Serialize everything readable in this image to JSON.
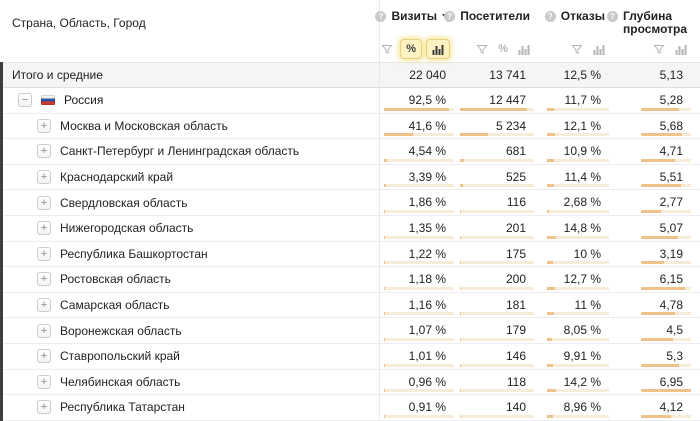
{
  "header": {
    "dimension_label": "Страна, Область, Город",
    "metrics": [
      {
        "label": "Визиты",
        "sortable": true,
        "controls": [
          "filter",
          "percent",
          "bars"
        ],
        "percent_active": true,
        "bars_active": true
      },
      {
        "label": "Посетители",
        "sortable": false,
        "controls": [
          "filter",
          "percent",
          "bars"
        ],
        "percent_active": false,
        "bars_active": false
      },
      {
        "label": "Отказы",
        "sortable": false,
        "controls": [
          "filter",
          "bars"
        ],
        "percent_active": false,
        "bars_active": false
      },
      {
        "label": "Глубина просмотра",
        "sortable": false,
        "controls": [
          "filter",
          "bars"
        ],
        "percent_active": false,
        "bars_active": false
      }
    ]
  },
  "totals_row": {
    "label": "Итого и средние",
    "values": [
      "22 040",
      "13 741",
      "12,5 %",
      "5,13"
    ]
  },
  "rows": [
    {
      "name": "Россия",
      "expander": "−",
      "flag": "russia",
      "indent": 1,
      "values": [
        "92,5 %",
        "12 447",
        "11,7 %",
        "5,28"
      ],
      "bar_fractions": [
        0.925,
        0.906,
        0.117,
        0.76
      ]
    },
    {
      "name": "Москва и Московская область",
      "expander": "+",
      "flag": null,
      "indent": 2,
      "values": [
        "41,6 %",
        "5 234",
        "12,1 %",
        "5,68"
      ],
      "bar_fractions": [
        0.416,
        0.381,
        0.121,
        0.817
      ]
    },
    {
      "name": "Санкт-Петербург и Ленинградская область",
      "expander": "+",
      "flag": null,
      "indent": 2,
      "values": [
        "4,54 %",
        "681",
        "10,9 %",
        "4,71"
      ],
      "bar_fractions": [
        0.045,
        0.05,
        0.109,
        0.678
      ]
    },
    {
      "name": "Краснодарский край",
      "expander": "+",
      "flag": null,
      "indent": 2,
      "values": [
        "3,39 %",
        "525",
        "11,4 %",
        "5,51"
      ],
      "bar_fractions": [
        0.034,
        0.038,
        0.114,
        0.793
      ]
    },
    {
      "name": "Свердловская область",
      "expander": "+",
      "flag": null,
      "indent": 2,
      "values": [
        "1,86 %",
        "116",
        "2,68 %",
        "2,77"
      ],
      "bar_fractions": [
        0.019,
        0.008,
        0.027,
        0.399
      ]
    },
    {
      "name": "Нижегородская область",
      "expander": "+",
      "flag": null,
      "indent": 2,
      "values": [
        "1,35 %",
        "201",
        "14,8 %",
        "5,07"
      ],
      "bar_fractions": [
        0.014,
        0.015,
        0.148,
        0.73
      ]
    },
    {
      "name": "Республика Башкортостан",
      "expander": "+",
      "flag": null,
      "indent": 2,
      "values": [
        "1,22 %",
        "175",
        "10 %",
        "3,19"
      ],
      "bar_fractions": [
        0.012,
        0.013,
        0.1,
        0.459
      ]
    },
    {
      "name": "Ростовская область",
      "expander": "+",
      "flag": null,
      "indent": 2,
      "values": [
        "1,18 %",
        "200",
        "12,7 %",
        "6,15"
      ],
      "bar_fractions": [
        0.012,
        0.015,
        0.127,
        0.885
      ]
    },
    {
      "name": "Самарская область",
      "expander": "+",
      "flag": null,
      "indent": 2,
      "values": [
        "1,16 %",
        "181",
        "11 %",
        "4,78"
      ],
      "bar_fractions": [
        0.012,
        0.013,
        0.11,
        0.688
      ]
    },
    {
      "name": "Воронежская область",
      "expander": "+",
      "flag": null,
      "indent": 2,
      "values": [
        "1,07 %",
        "179",
        "8,05 %",
        "4,5"
      ],
      "bar_fractions": [
        0.011,
        0.013,
        0.081,
        0.647
      ]
    },
    {
      "name": "Ставропольский край",
      "expander": "+",
      "flag": null,
      "indent": 2,
      "values": [
        "1,01 %",
        "146",
        "9,91 %",
        "5,3"
      ],
      "bar_fractions": [
        0.01,
        0.011,
        0.099,
        0.763
      ]
    },
    {
      "name": "Челябинская область",
      "expander": "+",
      "flag": null,
      "indent": 2,
      "values": [
        "0,96 %",
        "118",
        "14,2 %",
        "6,95"
      ],
      "bar_fractions": [
        0.01,
        0.009,
        0.142,
        1.0
      ]
    },
    {
      "name": "Республика Татарстан",
      "expander": "+",
      "flag": null,
      "indent": 2,
      "values": [
        "0,91 %",
        "140",
        "8,96 %",
        "4,12"
      ],
      "bar_fractions": [
        0.009,
        0.01,
        0.09,
        0.593
      ]
    }
  ],
  "icons": {
    "help": "help-icon",
    "filter": "filter-funnel-icon",
    "percent": "percent-toggle-icon",
    "bars": "bar-chart-toggle-icon",
    "sort": "sort-desc-caret-icon",
    "flag": "russia-flag-icon"
  },
  "colors": {
    "bar_fill": "#eec28a",
    "bar_track": "#f8ecd8",
    "active_toggle_bg": "#fcf2c2",
    "active_toggle_border": "#e5d080",
    "totals_bg": "#f5f5f5",
    "scroll_strip": "#3e3e3e",
    "text": "#222222",
    "muted_icon": "#b5b5b5"
  }
}
